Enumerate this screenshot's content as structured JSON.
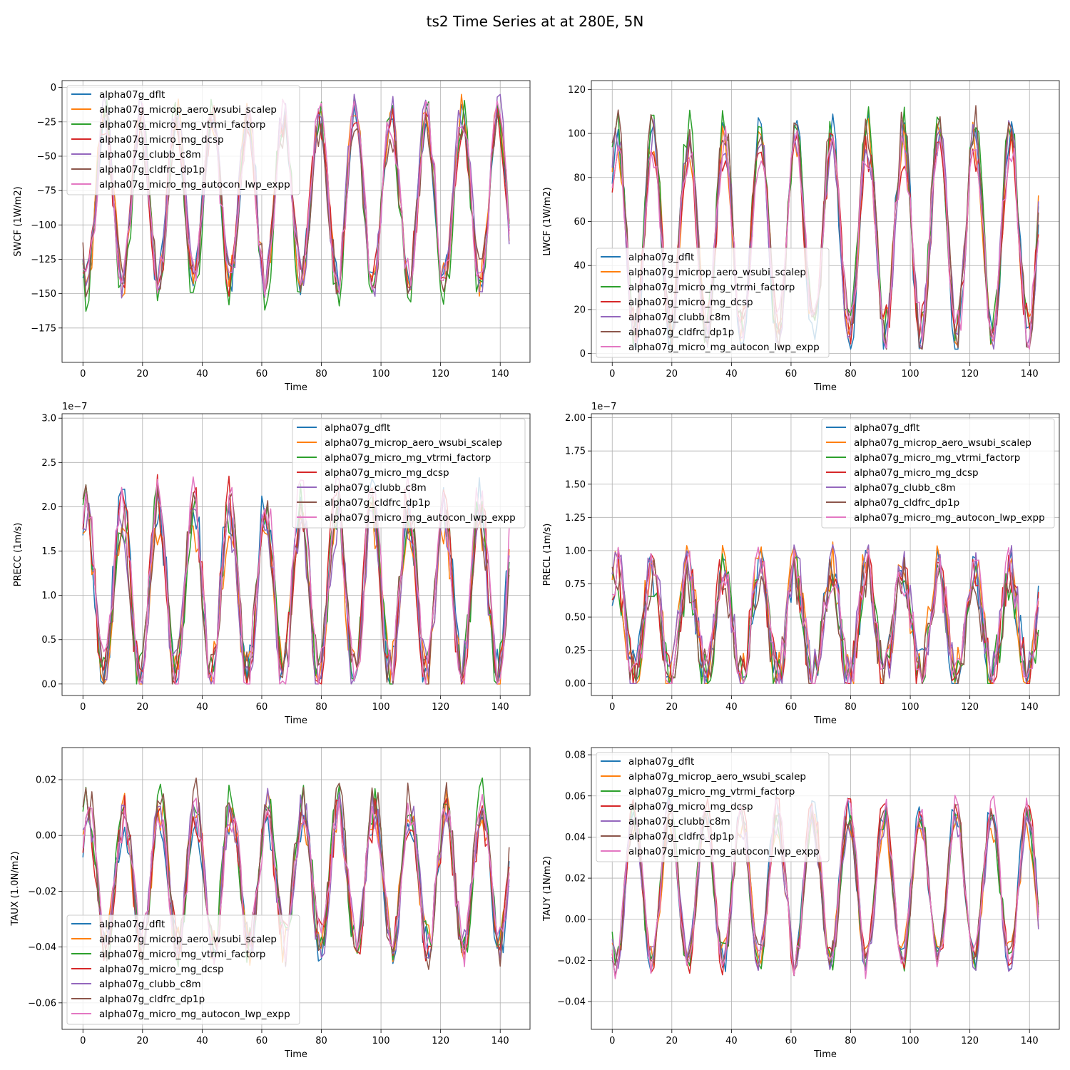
{
  "suptitle": "ts2 Time Series at at 280E, 5N",
  "colors": {
    "alpha07g_dflt": "#1f77b4",
    "alpha07g_microp_aero_wsubi_scalep": "#ff7f0e",
    "alpha07g_micro_mg_vtrmi_factorp": "#2ca02c",
    "alpha07g_micro_mg_dcsp": "#d62728",
    "alpha07g_clubb_c8m": "#9467bd",
    "alpha07g_cldfrc_dp1p": "#8c564b",
    "alpha07g_micro_mg_autocon_lwp_expp": "#e377c2"
  },
  "chart_data": [
    {
      "type": "line",
      "id": "swcf",
      "title": "",
      "xlabel": "Time",
      "ylabel": "SWCF (1W/m2)",
      "offset_text": "",
      "xlim": [
        -7,
        150
      ],
      "ylim": [
        -200,
        5
      ],
      "xticks": [
        0,
        20,
        40,
        60,
        80,
        100,
        120,
        140
      ],
      "xtick_labels": [
        "0",
        "20",
        "40",
        "60",
        "80",
        "100",
        "120",
        "140"
      ],
      "yticks": [
        0,
        -25,
        -50,
        -75,
        -100,
        -125,
        -150,
        -175
      ],
      "ytick_labels": [
        "0",
        "−25",
        "−50",
        "−75",
        "−100",
        "−125",
        "−150",
        "−175"
      ],
      "legend_loc": "upper-left",
      "n_points": 144,
      "period": 12,
      "phase": 7.5,
      "mean": -80,
      "amp": 60,
      "noise": 15,
      "spread": 8,
      "lo": -190,
      "hi": -5,
      "series_names": [
        "alpha07g_dflt",
        "alpha07g_microp_aero_wsubi_scalep",
        "alpha07g_micro_mg_vtrmi_factorp",
        "alpha07g_micro_mg_dcsp",
        "alpha07g_clubb_c8m",
        "alpha07g_cldfrc_dp1p",
        "alpha07g_micro_mg_autocon_lwp_expp"
      ]
    },
    {
      "type": "line",
      "id": "lwcf",
      "title": "",
      "xlabel": "Time",
      "ylabel": "LWCF (1W/m2)",
      "offset_text": "",
      "xlim": [
        -7,
        150
      ],
      "ylim": [
        -4,
        124
      ],
      "xticks": [
        0,
        20,
        40,
        60,
        80,
        100,
        120,
        140
      ],
      "xtick_labels": [
        "0",
        "20",
        "40",
        "60",
        "80",
        "100",
        "120",
        "140"
      ],
      "yticks": [
        0,
        20,
        40,
        60,
        80,
        100,
        120
      ],
      "ytick_labels": [
        "0",
        "20",
        "40",
        "60",
        "80",
        "100",
        "120"
      ],
      "legend_loc": "lower-left",
      "n_points": 144,
      "period": 12,
      "phase": 1.5,
      "mean": 55,
      "amp": 45,
      "noise": 10,
      "spread": 6,
      "lo": 2,
      "hi": 118,
      "series_names": [
        "alpha07g_dflt",
        "alpha07g_microp_aero_wsubi_scalep",
        "alpha07g_micro_mg_vtrmi_factorp",
        "alpha07g_micro_mg_dcsp",
        "alpha07g_clubb_c8m",
        "alpha07g_cldfrc_dp1p",
        "alpha07g_micro_mg_autocon_lwp_expp"
      ]
    },
    {
      "type": "line",
      "id": "precc",
      "title": "",
      "xlabel": "Time",
      "ylabel": "PRECC (1m/s)",
      "offset_text": "1e−7",
      "xlim": [
        -7,
        150
      ],
      "ylim": [
        -0.13,
        3.05
      ],
      "xticks": [
        0,
        20,
        40,
        60,
        80,
        100,
        120,
        140
      ],
      "xtick_labels": [
        "0",
        "20",
        "40",
        "60",
        "80",
        "100",
        "120",
        "140"
      ],
      "yticks": [
        0,
        0.5,
        1.0,
        1.5,
        2.0,
        2.5,
        3.0
      ],
      "ytick_labels": [
        "0.0",
        "0.5",
        "1.0",
        "1.5",
        "2.0",
        "2.5",
        "3.0"
      ],
      "legend_loc": "upper-right",
      "n_points": 144,
      "period": 12,
      "phase": 1.5,
      "mean": 1.05,
      "amp": 0.95,
      "noise": 0.3,
      "spread": 0.15,
      "lo": 0,
      "hi": 2.7,
      "series_names": [
        "alpha07g_dflt",
        "alpha07g_microp_aero_wsubi_scalep",
        "alpha07g_micro_mg_vtrmi_factorp",
        "alpha07g_micro_mg_dcsp",
        "alpha07g_clubb_c8m",
        "alpha07g_cldfrc_dp1p",
        "alpha07g_micro_mg_autocon_lwp_expp"
      ]
    },
    {
      "type": "line",
      "id": "precl",
      "title": "",
      "xlabel": "Time",
      "ylabel": "PRECL (1m/s)",
      "offset_text": "1e−7",
      "xlim": [
        -7,
        150
      ],
      "ylim": [
        -0.09,
        2.03
      ],
      "xticks": [
        0,
        20,
        40,
        60,
        80,
        100,
        120,
        140
      ],
      "xtick_labels": [
        "0",
        "20",
        "40",
        "60",
        "80",
        "100",
        "120",
        "140"
      ],
      "yticks": [
        0,
        0.25,
        0.5,
        0.75,
        1.0,
        1.25,
        1.5,
        1.75,
        2.0
      ],
      "ytick_labels": [
        "0.00",
        "0.25",
        "0.50",
        "0.75",
        "1.00",
        "1.25",
        "1.50",
        "1.75",
        "2.00"
      ],
      "legend_loc": "upper-right",
      "n_points": 144,
      "period": 12,
      "phase": 1.5,
      "mean": 0.45,
      "amp": 0.4,
      "noise": 0.2,
      "spread": 0.08,
      "lo": 0,
      "hi": 1.76,
      "series_names": [
        "alpha07g_dflt",
        "alpha07g_microp_aero_wsubi_scalep",
        "alpha07g_micro_mg_vtrmi_factorp",
        "alpha07g_micro_mg_dcsp",
        "alpha07g_clubb_c8m",
        "alpha07g_cldfrc_dp1p",
        "alpha07g_micro_mg_autocon_lwp_expp"
      ]
    },
    {
      "type": "line",
      "id": "taux",
      "title": "",
      "xlabel": "Time",
      "ylabel": "TAUX (1.0N/m2)",
      "offset_text": "",
      "xlim": [
        -7,
        150
      ],
      "ylim": [
        -0.0695,
        0.0315
      ],
      "xticks": [
        0,
        20,
        40,
        60,
        80,
        100,
        120,
        140
      ],
      "xtick_labels": [
        "0",
        "20",
        "40",
        "60",
        "80",
        "100",
        "120",
        "140"
      ],
      "yticks": [
        0.02,
        0.0,
        -0.02,
        -0.04,
        -0.06
      ],
      "ytick_labels": [
        "0.02",
        "0.00",
        "−0.02",
        "−0.04",
        "−0.06"
      ],
      "legend_loc": "lower-left",
      "n_points": 144,
      "period": 12,
      "phase": 1.5,
      "mean": -0.015,
      "amp": 0.025,
      "noise": 0.008,
      "spread": 0.004,
      "lo": -0.06,
      "hi": 0.028,
      "series_names": [
        "alpha07g_dflt",
        "alpha07g_microp_aero_wsubi_scalep",
        "alpha07g_micro_mg_vtrmi_factorp",
        "alpha07g_micro_mg_dcsp",
        "alpha07g_clubb_c8m",
        "alpha07g_cldfrc_dp1p",
        "alpha07g_micro_mg_autocon_lwp_expp"
      ]
    },
    {
      "type": "line",
      "id": "tauy",
      "title": "",
      "xlabel": "Time",
      "ylabel": "TAUY (1N/m2)",
      "offset_text": "",
      "xlim": [
        -7,
        150
      ],
      "ylim": [
        -0.0535,
        0.0835
      ],
      "xticks": [
        0,
        20,
        40,
        60,
        80,
        100,
        120,
        140
      ],
      "xtick_labels": [
        "0",
        "20",
        "40",
        "60",
        "80",
        "100",
        "120",
        "140"
      ],
      "yticks": [
        0.08,
        0.06,
        0.04,
        0.02,
        0.0,
        -0.02,
        -0.04
      ],
      "ytick_labels": [
        "0.08",
        "0.06",
        "0.04",
        "0.02",
        "0.00",
        "−0.02",
        "−0.04"
      ],
      "legend_loc": "upper-left",
      "n_points": 144,
      "period": 12,
      "phase": 7.5,
      "mean": 0.015,
      "amp": 0.035,
      "noise": 0.008,
      "spread": 0.004,
      "lo": -0.047,
      "hi": 0.073,
      "series_names": [
        "alpha07g_dflt",
        "alpha07g_microp_aero_wsubi_scalep",
        "alpha07g_micro_mg_vtrmi_factorp",
        "alpha07g_micro_mg_dcsp",
        "alpha07g_clubb_c8m",
        "alpha07g_cldfrc_dp1p",
        "alpha07g_micro_mg_autocon_lwp_expp"
      ]
    }
  ]
}
